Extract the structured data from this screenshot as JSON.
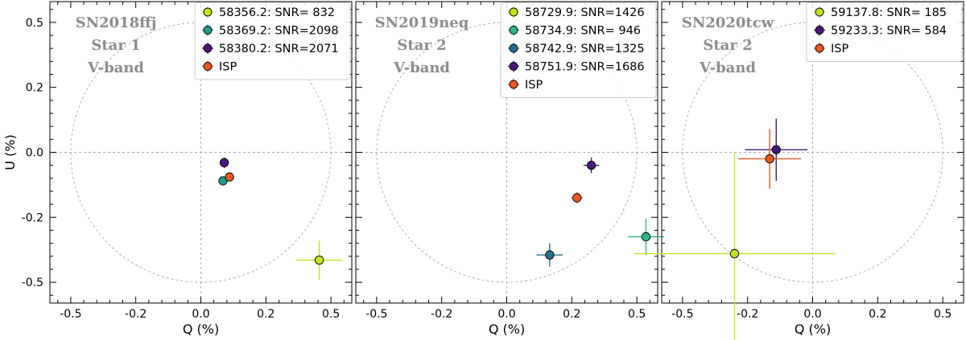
{
  "chart_data": [
    {
      "type": "scatter",
      "annotation": [
        "SN2018ffj",
        "Star 1",
        "V-band"
      ],
      "xlabel": "Q (%)",
      "ylabel": "U (%)",
      "xlim": [
        -0.58,
        0.58
      ],
      "ylim": [
        -0.58,
        0.58
      ],
      "xticks": [
        -0.5,
        -0.25,
        0.0,
        0.25,
        0.5
      ],
      "xticklabels": [
        "-0.5",
        "-0.2",
        "0.0",
        "0.2",
        "0.5"
      ],
      "yticks": [
        -0.5,
        -0.25,
        0.0,
        0.25,
        0.5
      ],
      "yticklabels": [
        "-0.5",
        "-0.2",
        "0.0",
        "0.2",
        "0.5"
      ],
      "circle_radius": 0.5,
      "series": [
        {
          "label": "58356.2: SNR= 832",
          "color": "#c4e31c",
          "q": 0.455,
          "u": -0.415,
          "q_err": 0.09,
          "u_err": 0.075
        },
        {
          "label": "58369.2: SNR=2098",
          "color": "#1f9e8a",
          "q": 0.085,
          "u": -0.11,
          "q_err": 0.015,
          "u_err": 0.015
        },
        {
          "label": "58380.2: SNR=2071",
          "color": "#48197a",
          "q": 0.09,
          "u": -0.04,
          "q_err": 0.018,
          "u_err": 0.02
        },
        {
          "label": "ISP",
          "color": "#e55a22",
          "q": 0.11,
          "u": -0.095,
          "q_err": 0.015,
          "u_err": 0.015
        }
      ]
    },
    {
      "type": "scatter",
      "annotation": [
        "SN2019neq",
        "Star 2",
        "V-band"
      ],
      "xlabel": "Q (%)",
      "ylabel": "",
      "xlim": [
        -0.58,
        0.58
      ],
      "ylim": [
        -0.58,
        0.58
      ],
      "xticks": [
        -0.5,
        -0.25,
        0.0,
        0.25,
        0.5
      ],
      "xticklabels": [
        "-0.5",
        "-0.2",
        "0.0",
        "0.2",
        "0.5"
      ],
      "yticks": [
        -0.5,
        -0.25,
        0.0,
        0.25,
        0.5
      ],
      "yticklabels": [],
      "circle_radius": 0.5,
      "series": [
        {
          "label": "58729.9: SNR=1426",
          "color": "#c4e31c",
          "q": null,
          "u": null,
          "q_err": null,
          "u_err": null
        },
        {
          "label": "58734.9: SNR= 946",
          "color": "#2fb887",
          "q": 0.535,
          "u": -0.325,
          "q_err": 0.07,
          "u_err": 0.07
        },
        {
          "label": "58742.9: SNR=1325",
          "color": "#2a6d8c",
          "q": 0.165,
          "u": -0.395,
          "q_err": 0.05,
          "u_err": 0.045
        },
        {
          "label": "58751.9: SNR=1686",
          "color": "#48197a",
          "q": 0.325,
          "u": -0.05,
          "q_err": 0.03,
          "u_err": 0.03
        },
        {
          "label": "ISP",
          "color": "#e55a22",
          "q": 0.27,
          "u": -0.175,
          "q_err": 0.022,
          "u_err": 0.022
        }
      ]
    },
    {
      "type": "scatter",
      "annotation": [
        "SN2020tcw",
        "Star 2",
        "V-band"
      ],
      "xlabel": "Q (%)",
      "ylabel": "",
      "xlim": [
        -0.58,
        0.58
      ],
      "ylim": [
        -0.58,
        0.58
      ],
      "xticks": [
        -0.5,
        -0.25,
        0.0,
        0.25,
        0.5
      ],
      "xticklabels": [
        "-0.5",
        "-0.2",
        "0.0",
        "0.2",
        "0.5"
      ],
      "yticks": [
        -0.5,
        -0.25,
        0.0,
        0.25,
        0.5
      ],
      "yticklabels": [],
      "circle_radius": 0.5,
      "series": [
        {
          "label": "59137.8: SNR= 185",
          "color": "#c4e31c",
          "q": -0.3,
          "u": -0.39,
          "q_err": 0.385,
          "u_err": 0.39
        },
        {
          "label": "59233.3: SNR= 584",
          "color": "#48197a",
          "q": -0.14,
          "u": 0.01,
          "q_err": 0.12,
          "u_err": 0.12
        },
        {
          "label": "ISP",
          "color": "#e55a22",
          "q": -0.165,
          "u": -0.025,
          "q_err": 0.12,
          "u_err": 0.115
        }
      ]
    }
  ]
}
